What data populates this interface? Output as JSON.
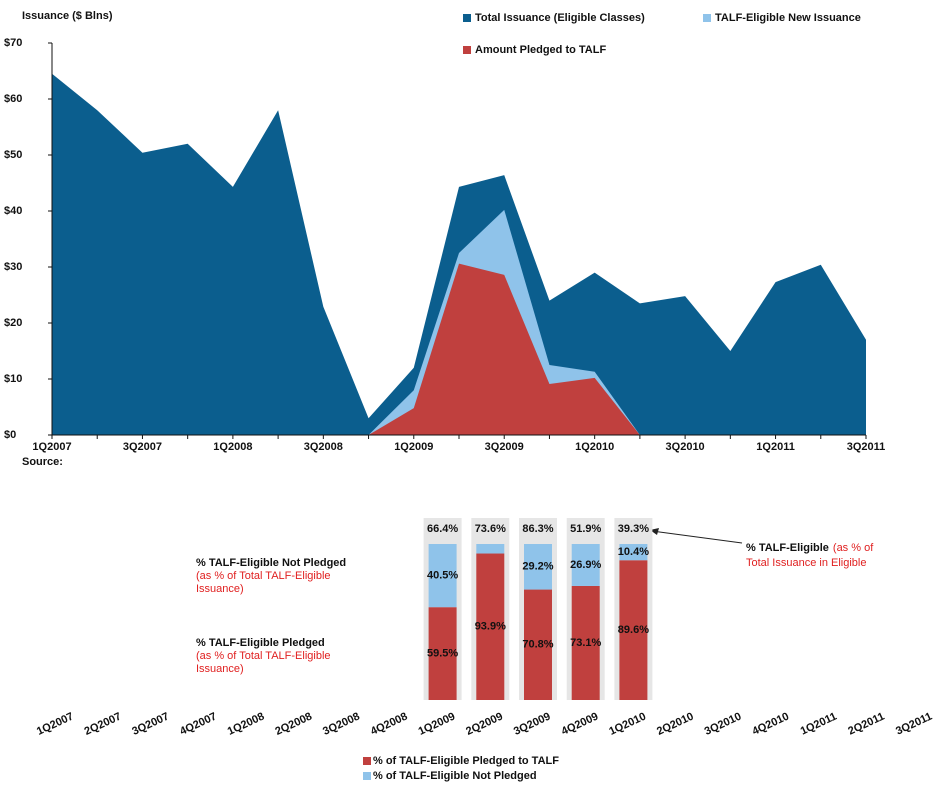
{
  "chart_data": [
    {
      "type": "area",
      "title": "Issuance ($ Blns)",
      "source": "Source:",
      "categories": [
        "1Q2007",
        null,
        "3Q2007",
        null,
        "1Q2008",
        null,
        "3Q2008",
        null,
        "1Q2009",
        null,
        "3Q2009",
        null,
        "1Q2010",
        null,
        "3Q2010",
        null,
        "1Q2011",
        null,
        "3Q2011"
      ],
      "series": [
        {
          "name": "Total Issuance (Eligible Classes)",
          "color": "#0b5e8e",
          "values": [
            64.5,
            58,
            50.4,
            52,
            44.3,
            58,
            22.9,
            3,
            12,
            44.3,
            46.4,
            24,
            29,
            23.5,
            24.8,
            15,
            27.3,
            30.4,
            17
          ]
        },
        {
          "name": "TALF-Eligible New Issuance",
          "color": "#8fc3ea",
          "values": [
            null,
            null,
            null,
            null,
            null,
            null,
            null,
            0,
            8,
            32.5,
            40.2,
            12.5,
            11.3,
            0,
            null,
            null,
            null,
            null,
            null
          ]
        },
        {
          "name": "Amount Pledged to TALF",
          "color": "#c0403e",
          "values": [
            null,
            null,
            null,
            null,
            null,
            null,
            null,
            0,
            4.8,
            30.6,
            28.6,
            9.1,
            10.2,
            0,
            null,
            null,
            null,
            null,
            null
          ]
        }
      ],
      "ylim": [
        0,
        70
      ],
      "yticks": [
        {
          "value": 0,
          "label": "$0"
        },
        {
          "value": 10,
          "label": "$10"
        },
        {
          "value": 20,
          "label": "$20"
        },
        {
          "value": 30,
          "label": "$30"
        },
        {
          "value": 40,
          "label": "$40"
        },
        {
          "value": 50,
          "label": "$50"
        },
        {
          "value": 60,
          "label": "$60"
        },
        {
          "value": 70,
          "label": "$70"
        }
      ]
    },
    {
      "type": "bar",
      "stacked": true,
      "categories": [
        "1Q2007",
        "2Q2007",
        "3Q2007",
        "4Q2007",
        "1Q2008",
        "2Q2008",
        "3Q2008",
        "4Q2008",
        "1Q2009",
        "2Q2009",
        "3Q2009",
        "4Q2009",
        "1Q2010",
        "2Q2010",
        "3Q2010",
        "4Q2010",
        "1Q2011",
        "2Q2011",
        "3Q2011"
      ],
      "series": [
        {
          "name": "% of TALF-Eligible Pledged to TALF",
          "color": "#c0403e",
          "values": [
            null,
            null,
            null,
            null,
            null,
            null,
            null,
            null,
            59.5,
            93.9,
            70.8,
            73.1,
            89.6,
            null,
            null,
            null,
            null,
            null,
            null
          ],
          "value_labels": [
            null,
            null,
            null,
            null,
            null,
            null,
            null,
            null,
            "59.5%",
            "93.9%",
            "70.8%",
            "73.1%",
            "89.6%",
            null,
            null,
            null,
            null,
            null,
            null
          ]
        },
        {
          "name": "% of TALF-Eligible Not Pledged",
          "color": "#8fc3ea",
          "values": [
            null,
            null,
            null,
            null,
            null,
            null,
            null,
            null,
            40.5,
            6.1,
            29.2,
            26.9,
            10.4,
            null,
            null,
            null,
            null,
            null,
            null
          ],
          "value_labels": [
            null,
            null,
            null,
            null,
            null,
            null,
            null,
            null,
            "40.5%",
            null,
            "29.2%",
            "26.9%",
            "10.4%",
            null,
            null,
            null,
            null,
            null,
            null
          ]
        }
      ],
      "eligible_share": {
        "values": [
          null,
          null,
          null,
          null,
          null,
          null,
          null,
          null,
          66.4,
          73.6,
          86.3,
          51.9,
          39.3,
          null,
          null,
          null,
          null,
          null,
          null
        ],
        "value_labels": [
          null,
          null,
          null,
          null,
          null,
          null,
          null,
          null,
          "66.4%",
          "73.6%",
          "86.3%",
          "51.9%",
          "39.3%",
          null,
          null,
          null,
          null,
          null,
          null
        ]
      },
      "ylim": [
        0,
        100
      ],
      "annotations": [
        {
          "text": "% TALF-Eligible Not Pledged",
          "note": [
            "(as % of Total TALF-Eligible",
            "Issuance)"
          ]
        },
        {
          "text": "% TALF-Eligible Pledged",
          "note": [
            "(as % of Total TALF-Eligible",
            "Issuance)"
          ]
        },
        {
          "text": "% TALF-Eligible",
          "note": [
            "(as % of",
            "Total Issuance in Eligible"
          ]
        }
      ]
    }
  ]
}
